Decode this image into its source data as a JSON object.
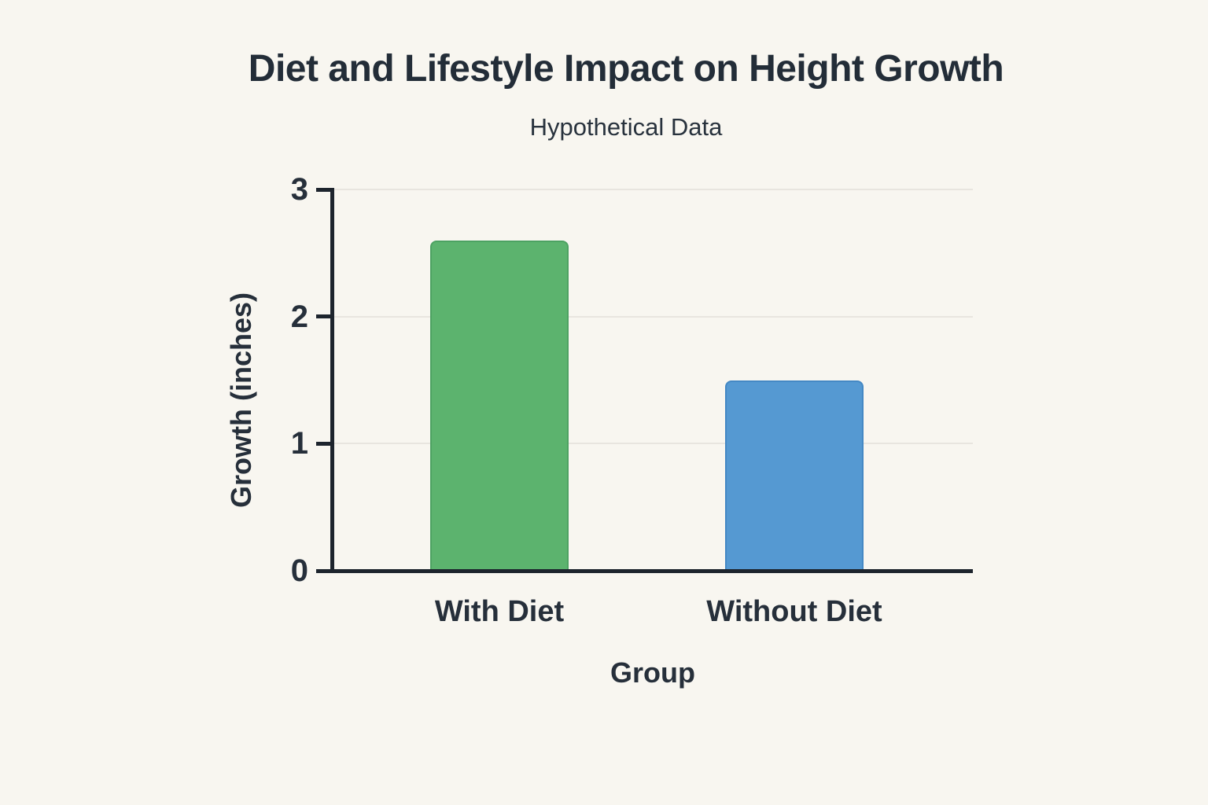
{
  "page": {
    "background_color": "#f8f6f0",
    "text_color": "#232d38",
    "axis_color": "#1d242d",
    "grid_color": "#e8e5df"
  },
  "chart_data": {
    "type": "bar",
    "title": "Diet and Lifestyle Impact on Height Growth",
    "subtitle": "Hypothetical Data",
    "xlabel": "Group",
    "ylabel": "Growth (inches)",
    "categories": [
      "With Diet",
      "Without Diet"
    ],
    "values": [
      2.6,
      1.5
    ],
    "bar_colors": [
      "#5cb36e",
      "#5599d2"
    ],
    "bar_edge_colors": [
      "#4da262",
      "#4488c4"
    ],
    "ylim": [
      0,
      3
    ],
    "yticks": [
      "0",
      "1",
      "2",
      "3"
    ],
    "grid": "horizontal-only",
    "legend": "none"
  }
}
